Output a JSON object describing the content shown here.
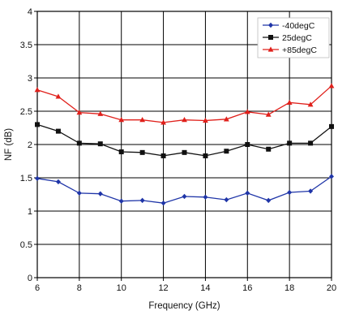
{
  "chart_data": {
    "type": "line",
    "title": "",
    "xlabel": "Frequency (GHz)",
    "ylabel": "NF (dB)",
    "xlim": [
      6,
      20
    ],
    "ylim": [
      0,
      4
    ],
    "xticks": [
      "6",
      "8",
      "10",
      "12",
      "14",
      "16",
      "18",
      "20"
    ],
    "yticks": [
      "0",
      "0.5",
      "1",
      "1.5",
      "2",
      "2.5",
      "3",
      "3.5",
      "4"
    ],
    "grid": true,
    "legend_position": "top-right",
    "x": [
      6,
      7,
      8,
      9,
      10,
      11,
      12,
      13,
      14,
      15,
      16,
      17,
      18,
      19,
      20
    ],
    "series": [
      {
        "name": "-40degC",
        "color": "#1f35a8",
        "marker": "diamond",
        "values": [
          1.49,
          1.44,
          1.27,
          1.26,
          1.15,
          1.16,
          1.12,
          1.22,
          1.21,
          1.17,
          1.27,
          1.16,
          1.28,
          1.3,
          1.52
        ]
      },
      {
        "name": "25degC",
        "color": "#111111",
        "marker": "square",
        "values": [
          2.3,
          2.2,
          2.02,
          2.01,
          1.89,
          1.88,
          1.83,
          1.88,
          1.83,
          1.9,
          2.0,
          1.93,
          2.02,
          2.02,
          2.27
        ]
      },
      {
        "name": "+85degC",
        "color": "#e0201b",
        "marker": "triangle",
        "values": [
          2.82,
          2.72,
          2.48,
          2.46,
          2.37,
          2.37,
          2.33,
          2.37,
          2.36,
          2.38,
          2.49,
          2.45,
          2.63,
          2.6,
          2.88
        ]
      }
    ]
  }
}
